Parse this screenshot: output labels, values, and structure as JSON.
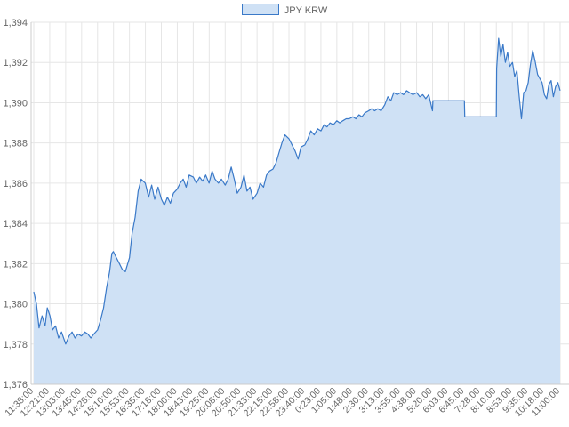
{
  "chart_data": {
    "type": "area",
    "title": "",
    "xlabel": "",
    "ylabel": "",
    "ylim": [
      1376,
      1394
    ],
    "y_ticks": [
      "1,376",
      "1,378",
      "1,380",
      "1,382",
      "1,384",
      "1,386",
      "1,388",
      "1,390",
      "1,392",
      "1,394"
    ],
    "x_ticks": [
      "11:38:00",
      "12:21:00",
      "13:03:00",
      "13:45:00",
      "14:28:00",
      "15:10:00",
      "15:53:00",
      "16:35:00",
      "17:18:00",
      "18:00:00",
      "18:43:00",
      "19:25:00",
      "20:08:00",
      "20:50:00",
      "21:33:00",
      "22:15:00",
      "22:58:00",
      "23:40:00",
      "0:23:00",
      "1:05:00",
      "1:48:00",
      "2:30:00",
      "3:13:00",
      "3:55:00",
      "4:38:00",
      "5:20:00",
      "6:03:00",
      "6:45:00",
      "7:28:00",
      "8:10:00",
      "8:53:00",
      "9:35:00",
      "10:18:00",
      "11:00:00"
    ],
    "grid": true,
    "legend_position": "top-center",
    "colors": {
      "line": "#3a79c8",
      "fill": "#cfe1f5",
      "grid": "#e6e6e6"
    },
    "series": [
      {
        "name": "JPY KRW",
        "points": [
          [
            "11:38:00",
            1380.6
          ],
          [
            "11:45:00",
            1380.0
          ],
          [
            "11:52:00",
            1378.8
          ],
          [
            "12:00:00",
            1379.4
          ],
          [
            "12:08:00",
            1378.9
          ],
          [
            "12:14:00",
            1379.8
          ],
          [
            "12:21:00",
            1379.4
          ],
          [
            "12:28:00",
            1378.7
          ],
          [
            "12:36:00",
            1378.9
          ],
          [
            "12:44:00",
            1378.3
          ],
          [
            "12:52:00",
            1378.6
          ],
          [
            "13:03:00",
            1378.0
          ],
          [
            "13:12:00",
            1378.4
          ],
          [
            "13:20:00",
            1378.6
          ],
          [
            "13:28:00",
            1378.3
          ],
          [
            "13:36:00",
            1378.5
          ],
          [
            "13:45:00",
            1378.4
          ],
          [
            "13:54:00",
            1378.6
          ],
          [
            "14:02:00",
            1378.5
          ],
          [
            "14:10:00",
            1378.3
          ],
          [
            "14:18:00",
            1378.5
          ],
          [
            "14:28:00",
            1378.7
          ],
          [
            "14:36:00",
            1379.2
          ],
          [
            "14:44:00",
            1379.8
          ],
          [
            "14:52:00",
            1380.8
          ],
          [
            "15:00:00",
            1381.6
          ],
          [
            "15:06:00",
            1382.5
          ],
          [
            "15:10:00",
            1382.6
          ],
          [
            "15:18:00",
            1382.3
          ],
          [
            "15:26:00",
            1382.0
          ],
          [
            "15:34:00",
            1381.7
          ],
          [
            "15:42:00",
            1381.6
          ],
          [
            "15:53:00",
            1382.3
          ],
          [
            "16:00:00",
            1383.5
          ],
          [
            "16:08:00",
            1384.3
          ],
          [
            "16:16:00",
            1385.6
          ],
          [
            "16:24:00",
            1386.2
          ],
          [
            "16:35:00",
            1386.0
          ],
          [
            "16:44:00",
            1385.3
          ],
          [
            "16:52:00",
            1385.9
          ],
          [
            "17:00:00",
            1385.2
          ],
          [
            "17:09:00",
            1385.8
          ],
          [
            "17:18:00",
            1385.2
          ],
          [
            "17:26:00",
            1384.9
          ],
          [
            "17:34:00",
            1385.3
          ],
          [
            "17:42:00",
            1385.0
          ],
          [
            "17:50:00",
            1385.5
          ],
          [
            "18:00:00",
            1385.7
          ],
          [
            "18:08:00",
            1386.0
          ],
          [
            "18:16:00",
            1386.2
          ],
          [
            "18:24:00",
            1385.8
          ],
          [
            "18:32:00",
            1386.4
          ],
          [
            "18:43:00",
            1386.3
          ],
          [
            "18:51:00",
            1386.0
          ],
          [
            "19:00:00",
            1386.3
          ],
          [
            "19:08:00",
            1386.1
          ],
          [
            "19:16:00",
            1386.4
          ],
          [
            "19:25:00",
            1386.0
          ],
          [
            "19:33:00",
            1386.6
          ],
          [
            "19:41:00",
            1386.2
          ],
          [
            "19:50:00",
            1386.0
          ],
          [
            "19:58:00",
            1386.2
          ],
          [
            "20:08:00",
            1385.9
          ],
          [
            "20:16:00",
            1386.2
          ],
          [
            "20:24:00",
            1386.8
          ],
          [
            "20:32:00",
            1386.2
          ],
          [
            "20:40:00",
            1385.5
          ],
          [
            "20:50:00",
            1385.8
          ],
          [
            "20:58:00",
            1386.4
          ],
          [
            "21:06:00",
            1385.6
          ],
          [
            "21:14:00",
            1385.8
          ],
          [
            "21:22:00",
            1385.2
          ],
          [
            "21:33:00",
            1385.5
          ],
          [
            "21:41:00",
            1386.0
          ],
          [
            "21:50:00",
            1385.8
          ],
          [
            "21:58:00",
            1386.4
          ],
          [
            "22:06:00",
            1386.6
          ],
          [
            "22:15:00",
            1386.7
          ],
          [
            "22:23:00",
            1387.0
          ],
          [
            "22:31:00",
            1387.5
          ],
          [
            "22:39:00",
            1388.0
          ],
          [
            "22:47:00",
            1388.4
          ],
          [
            "22:58:00",
            1388.2
          ],
          [
            "23:06:00",
            1387.9
          ],
          [
            "23:14:00",
            1387.6
          ],
          [
            "23:22:00",
            1387.2
          ],
          [
            "23:30:00",
            1387.8
          ],
          [
            "23:40:00",
            1387.9
          ],
          [
            "23:48:00",
            1388.2
          ],
          [
            "23:56:00",
            1388.6
          ],
          [
            "0:05:00",
            1388.4
          ],
          [
            "0:14:00",
            1388.7
          ],
          [
            "0:23:00",
            1388.6
          ],
          [
            "0:31:00",
            1388.9
          ],
          [
            "0:39:00",
            1388.8
          ],
          [
            "0:47:00",
            1389.0
          ],
          [
            "0:56:00",
            1388.9
          ],
          [
            "1:05:00",
            1389.1
          ],
          [
            "1:13:00",
            1389.0
          ],
          [
            "1:21:00",
            1389.1
          ],
          [
            "1:30:00",
            1389.2
          ],
          [
            "1:38:00",
            1389.2
          ],
          [
            "1:48:00",
            1389.3
          ],
          [
            "1:56:00",
            1389.2
          ],
          [
            "2:04:00",
            1389.4
          ],
          [
            "2:12:00",
            1389.3
          ],
          [
            "2:20:00",
            1389.5
          ],
          [
            "2:30:00",
            1389.6
          ],
          [
            "2:38:00",
            1389.7
          ],
          [
            "2:46:00",
            1389.6
          ],
          [
            "2:54:00",
            1389.7
          ],
          [
            "3:03:00",
            1389.6
          ],
          [
            "3:13:00",
            1389.9
          ],
          [
            "3:21:00",
            1390.3
          ],
          [
            "3:29:00",
            1390.1
          ],
          [
            "3:37:00",
            1390.5
          ],
          [
            "3:46:00",
            1390.4
          ],
          [
            "3:55:00",
            1390.5
          ],
          [
            "4:03:00",
            1390.4
          ],
          [
            "4:11:00",
            1390.6
          ],
          [
            "4:19:00",
            1390.5
          ],
          [
            "4:28:00",
            1390.4
          ],
          [
            "4:38:00",
            1390.5
          ],
          [
            "4:46:00",
            1390.3
          ],
          [
            "4:54:00",
            1390.4
          ],
          [
            "5:02:00",
            1390.2
          ],
          [
            "5:10:00",
            1390.4
          ],
          [
            "5:20:00",
            1389.6
          ],
          [
            "5:21:00",
            1390.1
          ],
          [
            "6:45:00",
            1390.1
          ],
          [
            "6:46:00",
            1389.3
          ],
          [
            "8:10:00",
            1389.3
          ],
          [
            "8:11:00",
            1391.7
          ],
          [
            "8:16:00",
            1393.2
          ],
          [
            "8:22:00",
            1392.3
          ],
          [
            "8:28:00",
            1392.9
          ],
          [
            "8:34:00",
            1392.0
          ],
          [
            "8:40:00",
            1392.5
          ],
          [
            "8:46:00",
            1391.8
          ],
          [
            "8:53:00",
            1392.0
          ],
          [
            "8:59:00",
            1391.3
          ],
          [
            "9:05:00",
            1391.6
          ],
          [
            "9:11:00",
            1390.3
          ],
          [
            "9:17:00",
            1389.2
          ],
          [
            "9:23:00",
            1390.5
          ],
          [
            "9:29:00",
            1390.6
          ],
          [
            "9:35:00",
            1391.0
          ],
          [
            "9:41:00",
            1391.9
          ],
          [
            "9:47:00",
            1392.6
          ],
          [
            "9:53:00",
            1392.1
          ],
          [
            "10:00:00",
            1391.4
          ],
          [
            "10:06:00",
            1391.2
          ],
          [
            "10:12:00",
            1391.0
          ],
          [
            "10:18:00",
            1390.4
          ],
          [
            "10:24:00",
            1390.2
          ],
          [
            "10:30:00",
            1390.9
          ],
          [
            "10:36:00",
            1391.1
          ],
          [
            "10:42:00",
            1390.3
          ],
          [
            "10:48:00",
            1390.8
          ],
          [
            "10:54:00",
            1391.0
          ],
          [
            "11:00:00",
            1390.6
          ]
        ]
      }
    ]
  }
}
